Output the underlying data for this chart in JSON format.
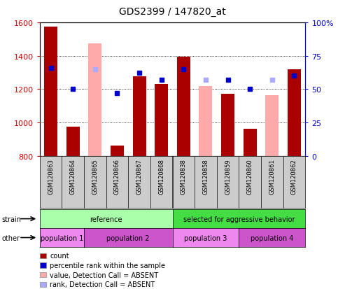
{
  "title": "GDS2399 / 147820_at",
  "samples": [
    "GSM120863",
    "GSM120864",
    "GSM120865",
    "GSM120866",
    "GSM120867",
    "GSM120868",
    "GSM120838",
    "GSM120858",
    "GSM120859",
    "GSM120860",
    "GSM120861",
    "GSM120862"
  ],
  "count_values": [
    1575,
    975,
    null,
    860,
    1275,
    1230,
    1395,
    null,
    1170,
    960,
    null,
    1320
  ],
  "absent_value_values": [
    null,
    null,
    1475,
    null,
    null,
    null,
    null,
    1220,
    null,
    null,
    1165,
    null
  ],
  "percentile_rank": [
    66,
    50,
    null,
    47,
    62,
    57,
    65,
    null,
    57,
    50,
    null,
    60
  ],
  "absent_rank_values": [
    null,
    null,
    65,
    null,
    null,
    null,
    null,
    57,
    null,
    null,
    57,
    null
  ],
  "ylim_left": [
    800,
    1600
  ],
  "ylim_right": [
    0,
    100
  ],
  "yticks_left": [
    800,
    1000,
    1200,
    1400,
    1600
  ],
  "yticks_right": [
    0,
    25,
    50,
    75,
    100
  ],
  "bar_width": 0.6,
  "count_color": "#aa0000",
  "absent_value_color": "#ffaaaa",
  "percentile_color": "#0000cc",
  "absent_rank_color": "#aaaaff",
  "strain_groups": [
    {
      "label": "reference",
      "samples": [
        "GSM120863",
        "GSM120864",
        "GSM120865",
        "GSM120866",
        "GSM120867",
        "GSM120868"
      ],
      "color": "#aaffaa"
    },
    {
      "label": "selected for aggressive behavior",
      "samples": [
        "GSM120838",
        "GSM120858",
        "GSM120859",
        "GSM120860",
        "GSM120861",
        "GSM120862"
      ],
      "color": "#44dd44"
    }
  ],
  "other_groups": [
    {
      "label": "population 1",
      "samples": [
        "GSM120863",
        "GSM120864"
      ],
      "color": "#ee88ee"
    },
    {
      "label": "population 2",
      "samples": [
        "GSM120865",
        "GSM120866",
        "GSM120867",
        "GSM120868"
      ],
      "color": "#cc55cc"
    },
    {
      "label": "population 3",
      "samples": [
        "GSM120838",
        "GSM120858",
        "GSM120859"
      ],
      "color": "#ee88ee"
    },
    {
      "label": "population 4",
      "samples": [
        "GSM120860",
        "GSM120861",
        "GSM120862"
      ],
      "color": "#cc55cc"
    }
  ],
  "legend_items": [
    {
      "label": "count",
      "color": "#aa0000"
    },
    {
      "label": "percentile rank within the sample",
      "color": "#0000cc"
    },
    {
      "label": "value, Detection Call = ABSENT",
      "color": "#ffaaaa"
    },
    {
      "label": "rank, Detection Call = ABSENT",
      "color": "#aaaaff"
    }
  ],
  "ylabel_left_color": "#cc0000",
  "ylabel_right_color": "#0000cc",
  "xtick_bg_color": "#cccccc",
  "fig_bg_color": "#ffffff",
  "plot_bg_color": "#ffffff"
}
